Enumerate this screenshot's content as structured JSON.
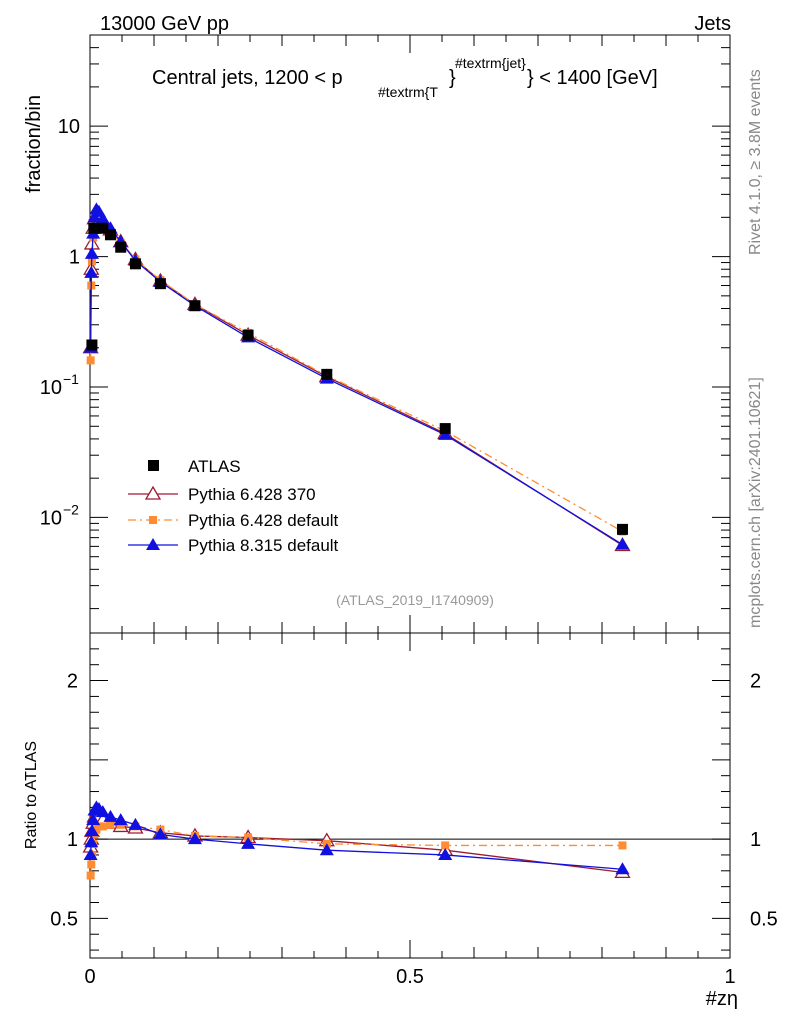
{
  "header": {
    "left_label": "13000 GeV pp",
    "right_label": "Jets"
  },
  "side_labels": {
    "rivet": "Rivet 4.1.0, ≥ 3.8M events",
    "mcplots": "mcplots.cern.ch [arXiv:2401.10621]"
  },
  "reference": "(ATLAS_2019_I1740909)",
  "legend": {
    "atlas": "ATLAS",
    "pythia6_370": "Pythia 6.428 370",
    "pythia6_default": "Pythia 6.428 default",
    "pythia8_default": "Pythia 8.315 default"
  },
  "colors": {
    "atlas": "#000000",
    "pythia6_370": "#9b1b30",
    "pythia6_default": "#ff8c33",
    "pythia8_default": "#1010e0"
  },
  "chart_data": [
    {
      "type": "line",
      "title": "Central jets, 1200 < p",
      "title_sub": "#textrm{T",
      "title_sup": "#textrm{jet}",
      "title_tail": "} < 1400 [GeV]",
      "title_brace": "}",
      "xlabel": "#zη",
      "ylabel": "fraction/bin",
      "yscale": "log",
      "xlim": [
        0,
        1
      ],
      "ylim": [
        0.0013,
        50
      ],
      "y_ticks": [
        {
          "value": 10,
          "label": "10",
          "exp": ""
        },
        {
          "value": 1,
          "label": "1",
          "exp": ""
        },
        {
          "value": 0.1,
          "label": "10",
          "exp": "−1"
        },
        {
          "value": 0.01,
          "label": "10",
          "exp": "−2"
        }
      ],
      "series": [
        {
          "name": "ATLAS",
          "marker": "square",
          "x": [
            0.003,
            0.006,
            0.02,
            0.032,
            0.048,
            0.071,
            0.11,
            0.164,
            0.247,
            0.37,
            0.555,
            0.832
          ],
          "y": [
            0.21,
            1.65,
            1.65,
            1.47,
            1.18,
            0.88,
            0.62,
            0.42,
            0.25,
            0.125,
            0.048,
            0.0081
          ]
        },
        {
          "name": "Pythia 6.428 370",
          "marker": "open-triangle",
          "x": [
            0.001,
            0.002,
            0.003,
            0.005,
            0.007,
            0.01,
            0.014,
            0.02,
            0.032,
            0.048,
            0.071,
            0.11,
            0.164,
            0.247,
            0.37,
            0.555,
            0.832
          ],
          "y": [
            0.2,
            0.8,
            1.25,
            1.65,
            1.95,
            2.1,
            2.0,
            1.85,
            1.6,
            1.3,
            0.95,
            0.65,
            0.43,
            0.25,
            0.12,
            0.044,
            0.0061
          ]
        },
        {
          "name": "Pythia 6.428 default",
          "marker": "filled-square-small",
          "x": [
            0.001,
            0.002,
            0.003,
            0.005,
            0.007,
            0.01,
            0.014,
            0.02,
            0.032,
            0.048,
            0.071,
            0.11,
            0.164,
            0.247,
            0.37,
            0.555,
            0.832
          ],
          "y": [
            0.16,
            0.6,
            0.92,
            1.4,
            1.72,
            1.82,
            1.82,
            1.78,
            1.55,
            1.28,
            0.95,
            0.66,
            0.43,
            0.26,
            0.122,
            0.046,
            0.0078
          ]
        },
        {
          "name": "Pythia 8.315 default",
          "marker": "filled-triangle",
          "x": [
            0.001,
            0.002,
            0.003,
            0.005,
            0.007,
            0.01,
            0.014,
            0.02,
            0.032,
            0.048,
            0.071,
            0.11,
            0.164,
            0.247,
            0.37,
            0.555,
            0.832
          ],
          "y": [
            0.2,
            0.75,
            1.05,
            1.5,
            2.0,
            2.3,
            2.2,
            1.95,
            1.65,
            1.3,
            0.93,
            0.64,
            0.42,
            0.24,
            0.116,
            0.043,
            0.0062
          ]
        }
      ]
    },
    {
      "type": "line",
      "ylabel": "Ratio to ATLAS",
      "xlim": [
        0,
        1
      ],
      "ylim": [
        0.25,
        2.3
      ],
      "reference_line": 1,
      "y_ticks": [
        {
          "value": 0.5,
          "label": "0.5"
        },
        {
          "value": 1,
          "label": "1"
        },
        {
          "value": 2,
          "label": "2"
        }
      ],
      "x_ticks": [
        {
          "value": 0,
          "label": "0"
        },
        {
          "value": 0.5,
          "label": "0.5"
        },
        {
          "value": 1,
          "label": "1"
        }
      ],
      "series": [
        {
          "name": "Pythia 6.428 370",
          "marker": "open-triangle",
          "x": [
            0.001,
            0.002,
            0.003,
            0.005,
            0.007,
            0.01,
            0.014,
            0.02,
            0.032,
            0.048,
            0.071,
            0.11,
            0.164,
            0.247,
            0.37,
            0.555,
            0.832
          ],
          "y": [
            0.95,
            1.0,
            1.05,
            1.1,
            1.14,
            1.15,
            1.14,
            1.12,
            1.1,
            1.08,
            1.07,
            1.04,
            1.02,
            1.01,
            0.99,
            0.93,
            0.79
          ]
        },
        {
          "name": "Pythia 6.428 default",
          "marker": "filled-square-small",
          "x": [
            0.001,
            0.002,
            0.003,
            0.005,
            0.007,
            0.01,
            0.014,
            0.02,
            0.032,
            0.048,
            0.071,
            0.11,
            0.164,
            0.247,
            0.37,
            0.555,
            0.832
          ],
          "y": [
            0.77,
            0.84,
            0.9,
            0.97,
            1.03,
            1.06,
            1.08,
            1.08,
            1.09,
            1.09,
            1.08,
            1.06,
            1.02,
            1.01,
            0.97,
            0.96,
            0.96
          ]
        },
        {
          "name": "Pythia 8.315 default",
          "marker": "filled-triangle",
          "x": [
            0.001,
            0.002,
            0.003,
            0.005,
            0.007,
            0.01,
            0.014,
            0.02,
            0.032,
            0.048,
            0.071,
            0.11,
            0.164,
            0.247,
            0.37,
            0.555,
            0.832
          ],
          "y": [
            0.9,
            0.98,
            1.05,
            1.12,
            1.18,
            1.2,
            1.19,
            1.17,
            1.14,
            1.12,
            1.09,
            1.03,
            1.0,
            0.97,
            0.93,
            0.9,
            0.81
          ]
        }
      ]
    }
  ]
}
